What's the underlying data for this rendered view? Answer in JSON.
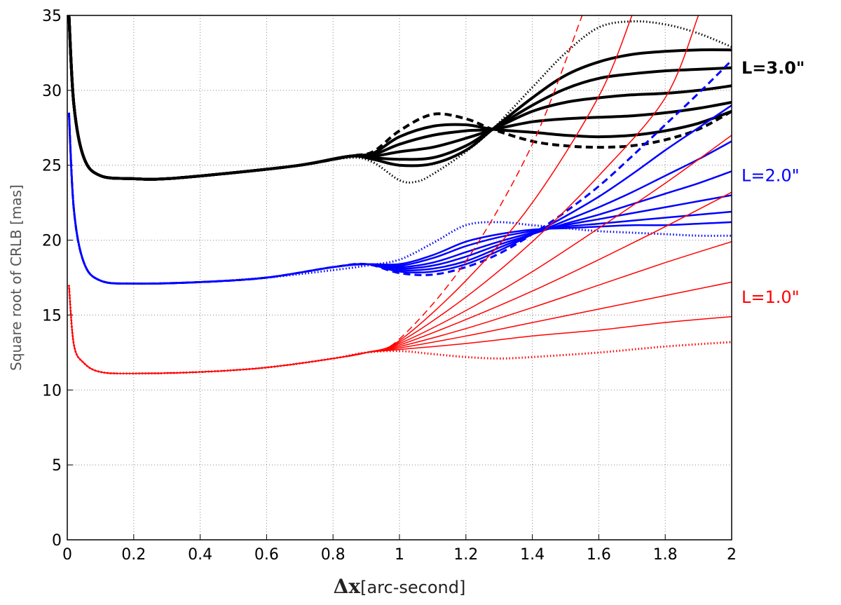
{
  "chart_data": {
    "type": "line",
    "title": "",
    "ylabel": "Square root of CRLB [mas]",
    "xlabel_symbol": "Δx",
    "xlabel_unit": "[arc-second]",
    "xlim": [
      0,
      2
    ],
    "ylim": [
      0,
      35
    ],
    "x_ticks": [
      "0",
      "0.2",
      "0.4",
      "0.6",
      "0.8",
      "1",
      "1.2",
      "1.4",
      "1.6",
      "1.8",
      "2"
    ],
    "y_ticks": [
      "0",
      "5",
      "10",
      "15",
      "20",
      "25",
      "30",
      "35"
    ],
    "grid": true,
    "annotations": [
      {
        "text": "L=3.0\"",
        "color": "#000000",
        "bold": true,
        "y": 31.5
      },
      {
        "text": "L=2.0\"",
        "color": "#0000ff",
        "bold": false,
        "y": 24.3
      },
      {
        "text": "L=1.0\"",
        "color": "#ff0000",
        "bold": false,
        "y": 16.2
      }
    ],
    "series": [
      {
        "group": "L=3.0\"",
        "color": "#000000",
        "style": "dotted",
        "width": 2,
        "x": [
          0.005,
          0.02,
          0.05,
          0.1,
          0.2,
          0.3,
          0.5,
          0.7,
          0.85,
          0.92,
          1.0,
          1.05,
          1.1,
          1.2,
          1.28,
          1.4,
          1.5,
          1.6,
          1.7,
          1.8,
          1.9,
          2.0
        ],
        "y": [
          35,
          29,
          25.5,
          24.3,
          24.1,
          24.1,
          24.5,
          25.0,
          25.5,
          25.2,
          24.0,
          23.9,
          24.4,
          25.9,
          27.4,
          30.2,
          32.5,
          34.2,
          34.6,
          34.4,
          33.8,
          32.9
        ]
      },
      {
        "group": "L=3.0\"",
        "color": "#000000",
        "style": "solid",
        "width": 4,
        "x": [
          0.005,
          0.02,
          0.05,
          0.1,
          0.2,
          0.3,
          0.5,
          0.7,
          0.85,
          0.92,
          1.0,
          1.1,
          1.2,
          1.28,
          1.4,
          1.5,
          1.6,
          1.7,
          1.8,
          1.9,
          2.0
        ],
        "y": [
          35,
          29,
          25.5,
          24.3,
          24.1,
          24.1,
          24.5,
          25.0,
          25.6,
          25.4,
          25.0,
          25.1,
          26.0,
          27.4,
          29.5,
          31.0,
          31.9,
          32.4,
          32.6,
          32.7,
          32.7
        ]
      },
      {
        "group": "L=3.0\"",
        "color": "#000000",
        "style": "solid",
        "width": 4,
        "x": [
          0.005,
          0.02,
          0.05,
          0.1,
          0.2,
          0.3,
          0.5,
          0.7,
          0.85,
          0.92,
          1.0,
          1.1,
          1.2,
          1.28,
          1.4,
          1.5,
          1.6,
          1.7,
          1.8,
          1.9,
          2.0
        ],
        "y": [
          35,
          29,
          25.5,
          24.3,
          24.1,
          24.1,
          24.5,
          25.0,
          25.6,
          25.5,
          25.4,
          25.5,
          26.3,
          27.4,
          29.0,
          30.1,
          30.8,
          31.1,
          31.3,
          31.4,
          31.5
        ]
      },
      {
        "group": "L=3.0\"",
        "color": "#000000",
        "style": "solid",
        "width": 4,
        "x": [
          0.005,
          0.02,
          0.05,
          0.1,
          0.2,
          0.3,
          0.5,
          0.7,
          0.85,
          0.92,
          1.0,
          1.1,
          1.2,
          1.28,
          1.4,
          1.5,
          1.6,
          1.7,
          1.8,
          1.9,
          2.0
        ],
        "y": [
          35,
          29,
          25.5,
          24.3,
          24.1,
          24.1,
          24.5,
          25.0,
          25.6,
          25.6,
          25.9,
          26.2,
          26.8,
          27.4,
          28.6,
          29.2,
          29.5,
          29.7,
          29.8,
          30.0,
          30.3
        ]
      },
      {
        "group": "L=3.0\"",
        "color": "#000000",
        "style": "solid",
        "width": 4,
        "x": [
          0.005,
          0.02,
          0.05,
          0.1,
          0.2,
          0.3,
          0.5,
          0.7,
          0.85,
          0.92,
          1.0,
          1.1,
          1.2,
          1.28,
          1.4,
          1.5,
          1.6,
          1.7,
          1.8,
          1.9,
          2.0
        ],
        "y": [
          35,
          29,
          25.5,
          24.3,
          24.1,
          24.1,
          24.5,
          25.0,
          25.6,
          25.7,
          26.4,
          27.0,
          27.3,
          27.4,
          27.9,
          28.1,
          28.2,
          28.3,
          28.5,
          28.8,
          29.2
        ]
      },
      {
        "group": "L=3.0\"",
        "color": "#000000",
        "style": "solid",
        "width": 4,
        "x": [
          0.005,
          0.02,
          0.05,
          0.1,
          0.2,
          0.3,
          0.5,
          0.7,
          0.85,
          0.92,
          1.0,
          1.1,
          1.2,
          1.28,
          1.4,
          1.5,
          1.6,
          1.7,
          1.8,
          1.9,
          2.0
        ],
        "y": [
          35,
          29,
          25.5,
          24.3,
          24.1,
          24.1,
          24.5,
          25.0,
          25.6,
          25.8,
          26.9,
          27.6,
          27.7,
          27.4,
          27.2,
          27.0,
          26.9,
          27.0,
          27.3,
          27.8,
          28.6
        ]
      },
      {
        "group": "L=3.0\"",
        "color": "#000000",
        "style": "dashed",
        "width": 4,
        "x": [
          0.005,
          0.02,
          0.05,
          0.1,
          0.2,
          0.3,
          0.5,
          0.7,
          0.85,
          0.92,
          1.0,
          1.1,
          1.2,
          1.28,
          1.4,
          1.5,
          1.6,
          1.7,
          1.8,
          1.9,
          2.0
        ],
        "y": [
          35,
          29,
          25.5,
          24.3,
          24.1,
          24.1,
          24.5,
          25.0,
          25.6,
          25.9,
          27.3,
          28.4,
          28.1,
          27.4,
          26.6,
          26.3,
          26.2,
          26.3,
          26.7,
          27.4,
          28.6
        ]
      },
      {
        "group": "L=2.0\"",
        "color": "#0000ff",
        "style": "dotted",
        "width": 2,
        "x": [
          0.005,
          0.02,
          0.05,
          0.1,
          0.2,
          0.4,
          0.6,
          0.8,
          0.9,
          1.0,
          1.1,
          1.2,
          1.3,
          1.4,
          1.5,
          1.6,
          1.7,
          1.8,
          1.9,
          2.0
        ],
        "y": [
          28.5,
          22,
          18.5,
          17.3,
          17.1,
          17.2,
          17.5,
          18.0,
          18.3,
          18.7,
          19.8,
          21.0,
          21.2,
          21.0,
          20.8,
          20.6,
          20.5,
          20.4,
          20.3,
          20.3
        ]
      },
      {
        "group": "L=2.0\"",
        "color": "#0000ff",
        "style": "solid",
        "width": 2.5,
        "x": [
          0.005,
          0.02,
          0.05,
          0.1,
          0.2,
          0.4,
          0.6,
          0.8,
          0.9,
          1.0,
          1.1,
          1.2,
          1.3,
          1.4,
          1.5,
          1.6,
          1.7,
          1.8,
          1.9,
          2.0
        ],
        "y": [
          28.5,
          22,
          18.5,
          17.3,
          17.1,
          17.2,
          17.5,
          18.2,
          18.4,
          18.4,
          19.0,
          19.9,
          20.4,
          20.7,
          20.8,
          20.9,
          21.0,
          21.0,
          21.1,
          21.2
        ]
      },
      {
        "group": "L=2.0\"",
        "color": "#0000ff",
        "style": "solid",
        "width": 2.5,
        "x": [
          0.005,
          0.02,
          0.05,
          0.1,
          0.2,
          0.4,
          0.6,
          0.8,
          0.9,
          1.0,
          1.1,
          1.2,
          1.3,
          1.4,
          1.5,
          1.6,
          1.7,
          1.8,
          1.9,
          2.0
        ],
        "y": [
          28.5,
          22,
          18.5,
          17.3,
          17.1,
          17.2,
          17.5,
          18.2,
          18.4,
          18.3,
          18.8,
          19.6,
          20.2,
          20.6,
          20.9,
          21.1,
          21.3,
          21.5,
          21.7,
          21.9
        ]
      },
      {
        "group": "L=2.0\"",
        "color": "#0000ff",
        "style": "solid",
        "width": 2.5,
        "x": [
          0.005,
          0.02,
          0.05,
          0.1,
          0.2,
          0.4,
          0.6,
          0.8,
          0.9,
          1.0,
          1.1,
          1.2,
          1.3,
          1.4,
          1.5,
          1.6,
          1.7,
          1.8,
          1.9,
          2.0
        ],
        "y": [
          28.5,
          22,
          18.5,
          17.3,
          17.1,
          17.2,
          17.5,
          18.2,
          18.4,
          18.2,
          18.5,
          19.2,
          19.9,
          20.5,
          21.0,
          21.4,
          21.8,
          22.2,
          22.6,
          23.0
        ]
      },
      {
        "group": "L=2.0\"",
        "color": "#0000ff",
        "style": "solid",
        "width": 2.5,
        "x": [
          0.005,
          0.02,
          0.05,
          0.1,
          0.2,
          0.4,
          0.6,
          0.8,
          0.9,
          1.0,
          1.1,
          1.2,
          1.3,
          1.4,
          1.5,
          1.6,
          1.7,
          1.8,
          1.9,
          2.0
        ],
        "y": [
          28.5,
          22,
          18.5,
          17.3,
          17.1,
          17.2,
          17.5,
          18.2,
          18.4,
          18.1,
          18.3,
          18.9,
          19.7,
          20.4,
          21.1,
          21.7,
          22.4,
          23.1,
          23.8,
          24.6
        ]
      },
      {
        "group": "L=2.0\"",
        "color": "#0000ff",
        "style": "solid",
        "width": 2.5,
        "x": [
          0.005,
          0.02,
          0.05,
          0.1,
          0.2,
          0.4,
          0.6,
          0.8,
          0.9,
          1.0,
          1.1,
          1.2,
          1.3,
          1.4,
          1.5,
          1.6,
          1.7,
          1.8,
          1.9,
          2.0
        ],
        "y": [
          28.5,
          22,
          18.5,
          17.3,
          17.1,
          17.2,
          17.5,
          18.2,
          18.4,
          18.0,
          18.1,
          18.6,
          19.5,
          20.4,
          21.3,
          22.2,
          23.2,
          24.3,
          25.4,
          26.6
        ]
      },
      {
        "group": "L=2.0\"",
        "color": "#0000ff",
        "style": "solid",
        "width": 2.5,
        "x": [
          0.005,
          0.02,
          0.05,
          0.1,
          0.2,
          0.4,
          0.6,
          0.8,
          0.9,
          1.0,
          1.1,
          1.2,
          1.3,
          1.4,
          1.5,
          1.6,
          1.7,
          1.8,
          1.9,
          2.0
        ],
        "y": [
          28.5,
          22,
          18.5,
          17.3,
          17.1,
          17.2,
          17.5,
          18.2,
          18.4,
          17.9,
          17.9,
          18.4,
          19.3,
          20.4,
          21.6,
          22.9,
          24.4,
          26.0,
          27.5,
          29.0
        ]
      },
      {
        "group": "L=2.0\"",
        "color": "#0000ff",
        "style": "dashed",
        "width": 3,
        "x": [
          0.005,
          0.02,
          0.05,
          0.1,
          0.2,
          0.4,
          0.6,
          0.8,
          0.9,
          1.0,
          1.1,
          1.2,
          1.3,
          1.4,
          1.5,
          1.6,
          1.7,
          1.8,
          1.9,
          2.0
        ],
        "y": [
          28.5,
          22,
          18.5,
          17.3,
          17.1,
          17.2,
          17.5,
          18.2,
          18.4,
          17.8,
          17.7,
          18.2,
          19.1,
          20.4,
          21.9,
          23.6,
          25.6,
          27.7,
          29.8,
          32.0
        ]
      },
      {
        "group": "L=1.0\"",
        "color": "#ff0000",
        "style": "dotted",
        "width": 2,
        "x": [
          0.005,
          0.02,
          0.05,
          0.1,
          0.2,
          0.4,
          0.6,
          0.8,
          0.9,
          1.0,
          1.1,
          1.2,
          1.3,
          1.4,
          1.6,
          1.8,
          2.0
        ],
        "y": [
          17,
          13,
          11.8,
          11.2,
          11.1,
          11.2,
          11.5,
          12.1,
          12.5,
          12.6,
          12.4,
          12.2,
          12.1,
          12.2,
          12.5,
          12.9,
          13.2
        ]
      },
      {
        "group": "L=1.0\"",
        "color": "#ff0000",
        "style": "solid",
        "width": 1.5,
        "x": [
          0.005,
          0.02,
          0.05,
          0.1,
          0.2,
          0.4,
          0.6,
          0.8,
          0.9,
          1.0,
          1.2,
          1.4,
          1.6,
          1.8,
          2.0
        ],
        "y": [
          17,
          13,
          11.8,
          11.2,
          11.1,
          11.2,
          11.5,
          12.1,
          12.5,
          12.7,
          13.1,
          13.6,
          14.0,
          14.5,
          14.9
        ]
      },
      {
        "group": "L=1.0\"",
        "color": "#ff0000",
        "style": "solid",
        "width": 1.5,
        "x": [
          0.005,
          0.02,
          0.05,
          0.1,
          0.2,
          0.4,
          0.6,
          0.8,
          0.9,
          1.0,
          1.2,
          1.4,
          1.6,
          1.8,
          2.0
        ],
        "y": [
          17,
          13,
          11.8,
          11.2,
          11.1,
          11.2,
          11.5,
          12.1,
          12.5,
          12.8,
          13.6,
          14.5,
          15.4,
          16.3,
          17.2
        ]
      },
      {
        "group": "L=1.0\"",
        "color": "#ff0000",
        "style": "solid",
        "width": 1.5,
        "x": [
          0.005,
          0.02,
          0.05,
          0.1,
          0.2,
          0.4,
          0.6,
          0.8,
          0.9,
          1.0,
          1.2,
          1.4,
          1.6,
          1.8,
          2.0
        ],
        "y": [
          17,
          13,
          11.8,
          11.2,
          11.1,
          11.2,
          11.5,
          12.1,
          12.5,
          12.9,
          14.1,
          15.5,
          17.0,
          18.5,
          19.9
        ]
      },
      {
        "group": "L=1.0\"",
        "color": "#ff0000",
        "style": "solid",
        "width": 1.5,
        "x": [
          0.005,
          0.02,
          0.05,
          0.1,
          0.2,
          0.4,
          0.6,
          0.8,
          0.9,
          1.0,
          1.2,
          1.4,
          1.6,
          1.8,
          2.0
        ],
        "y": [
          17,
          13,
          11.8,
          11.2,
          11.1,
          11.2,
          11.5,
          12.1,
          12.5,
          13.0,
          14.7,
          16.6,
          18.7,
          20.9,
          23.2
        ]
      },
      {
        "group": "L=1.0\"",
        "color": "#ff0000",
        "style": "solid",
        "width": 1.5,
        "x": [
          0.005,
          0.02,
          0.05,
          0.1,
          0.2,
          0.4,
          0.6,
          0.8,
          0.9,
          1.0,
          1.2,
          1.4,
          1.6,
          1.8,
          2.0
        ],
        "y": [
          17,
          13,
          11.8,
          11.2,
          11.1,
          11.2,
          11.5,
          12.1,
          12.5,
          13.1,
          15.3,
          17.9,
          20.8,
          23.8,
          27.0
        ]
      },
      {
        "group": "L=1.0\"",
        "color": "#ff0000",
        "style": "solid",
        "width": 1.5,
        "x": [
          0.005,
          0.02,
          0.05,
          0.1,
          0.2,
          0.4,
          0.6,
          0.8,
          0.9,
          1.0,
          1.2,
          1.4,
          1.6,
          1.8,
          1.9
        ],
        "y": [
          17,
          13,
          11.8,
          11.2,
          11.1,
          11.2,
          11.5,
          12.1,
          12.5,
          13.2,
          16.2,
          19.9,
          24.3,
          29.5,
          35.0
        ]
      },
      {
        "group": "L=1.0\"",
        "color": "#ff0000",
        "style": "solid",
        "width": 1.5,
        "x": [
          0.005,
          0.02,
          0.05,
          0.1,
          0.2,
          0.4,
          0.6,
          0.8,
          0.9,
          1.0,
          1.2,
          1.4,
          1.6,
          1.7
        ],
        "y": [
          17,
          13,
          11.8,
          11.2,
          11.1,
          11.2,
          11.5,
          12.1,
          12.5,
          13.3,
          17.3,
          22.5,
          29.6,
          35.0
        ]
      },
      {
        "group": "L=1.0\"",
        "color": "#ff0000",
        "style": "dashed",
        "width": 1.5,
        "x": [
          0.005,
          0.02,
          0.05,
          0.1,
          0.2,
          0.4,
          0.6,
          0.8,
          0.9,
          1.0,
          1.2,
          1.4,
          1.55
        ],
        "y": [
          17,
          13,
          11.8,
          11.2,
          11.1,
          11.2,
          11.5,
          12.1,
          12.5,
          13.4,
          18.6,
          26.4,
          35.0
        ]
      }
    ]
  }
}
